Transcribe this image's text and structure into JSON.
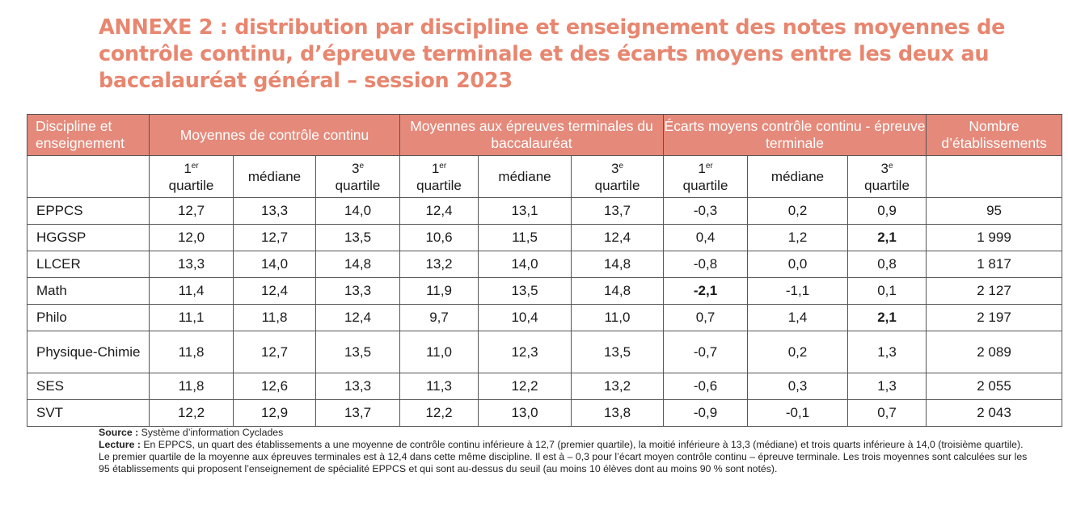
{
  "title": "ANNEXE 2 : distribution par discipline et enseignement des notes moyennes de contrôle continu, d’épreuve terminale et des écarts moyens entre les deux au baccalauréat général – session 2023",
  "table": {
    "group_headers": {
      "discipline": "Discipline et enseignement",
      "cc": "Moyennes de contrôle continu",
      "et": "Moyennes aux épreuves terminales du baccalauréat",
      "ecarts": "Écarts moyens contrôle continu - épreuve terminale",
      "nb": "Nombre d’établissements"
    },
    "sub_headers": {
      "q1_number": "1",
      "q1_sup": "er",
      "q3_number": "3",
      "q3_sup": "e",
      "quartile": "quartile",
      "median": "médiane"
    },
    "rows": [
      {
        "discipline": "EPPCS",
        "values": [
          "12,7",
          "13,3",
          "14,0",
          "12,4",
          "13,1",
          "13,7",
          "-0,3",
          "0,2",
          "0,9",
          "95"
        ]
      },
      {
        "discipline": "HGGSP",
        "values": [
          "12,0",
          "12,7",
          "13,5",
          "10,6",
          "11,5",
          "12,4",
          "0,4",
          "1,2",
          "2,1",
          "1 999"
        ]
      },
      {
        "discipline": "LLCER",
        "values": [
          "13,3",
          "14,0",
          "14,8",
          "13,2",
          "14,0",
          "14,8",
          "-0,8",
          "0,0",
          "0,8",
          "1 817"
        ]
      },
      {
        "discipline": "Math",
        "values": [
          "11,4",
          "12,4",
          "13,3",
          "11,9",
          "13,5",
          "14,8",
          "-2,1",
          "-1,1",
          "0,1",
          "2 127"
        ]
      },
      {
        "discipline": "Philo",
        "values": [
          "11,1",
          "11,8",
          "12,4",
          "9,7",
          "10,4",
          "11,0",
          "0,7",
          "1,4",
          "2,1",
          "2 197"
        ]
      },
      {
        "discipline": "Physique-Chimie",
        "values": [
          "11,8",
          "12,7",
          "13,5",
          "11,0",
          "12,3",
          "13,5",
          "-0,7",
          "0,2",
          "1,3",
          "2 089"
        ]
      },
      {
        "discipline": "SES",
        "values": [
          "11,8",
          "12,6",
          "13,3",
          "11,3",
          "12,2",
          "13,2",
          "-0,6",
          "0,3",
          "1,3",
          "2 055"
        ]
      },
      {
        "discipline": "SVT",
        "values": [
          "12,2",
          "12,9",
          "13,7",
          "12,2",
          "13,0",
          "13,8",
          "-0,9",
          "-0,1",
          "0,7",
          "2 043"
        ]
      }
    ]
  },
  "notes": {
    "source_label": "Source :",
    "source_text": " Système d’information Cyclades",
    "lecture_label": "Lecture :",
    "lecture_text": " En EPPCS, un quart des établissements a une moyenne de contrôle continu inférieure à 12,7 (premier quartile), la moitié inférieure à 13,3 (médiane) et trois quarts inférieure à 14,0 (troisième quartile). Le premier quartile de la moyenne aux épreuves terminales est à 12,4 dans cette même discipline. Il est à – 0,3 pour l’écart moyen contrôle continu – épreuve terminale. Les trois moyennes sont calculées sur les 95 établissements qui proposent l’enseignement de spécialité EPPCS et qui sont au-dessus du seuil (au moins 10 élèves dont au moins 90 % sont notés)."
  }
}
